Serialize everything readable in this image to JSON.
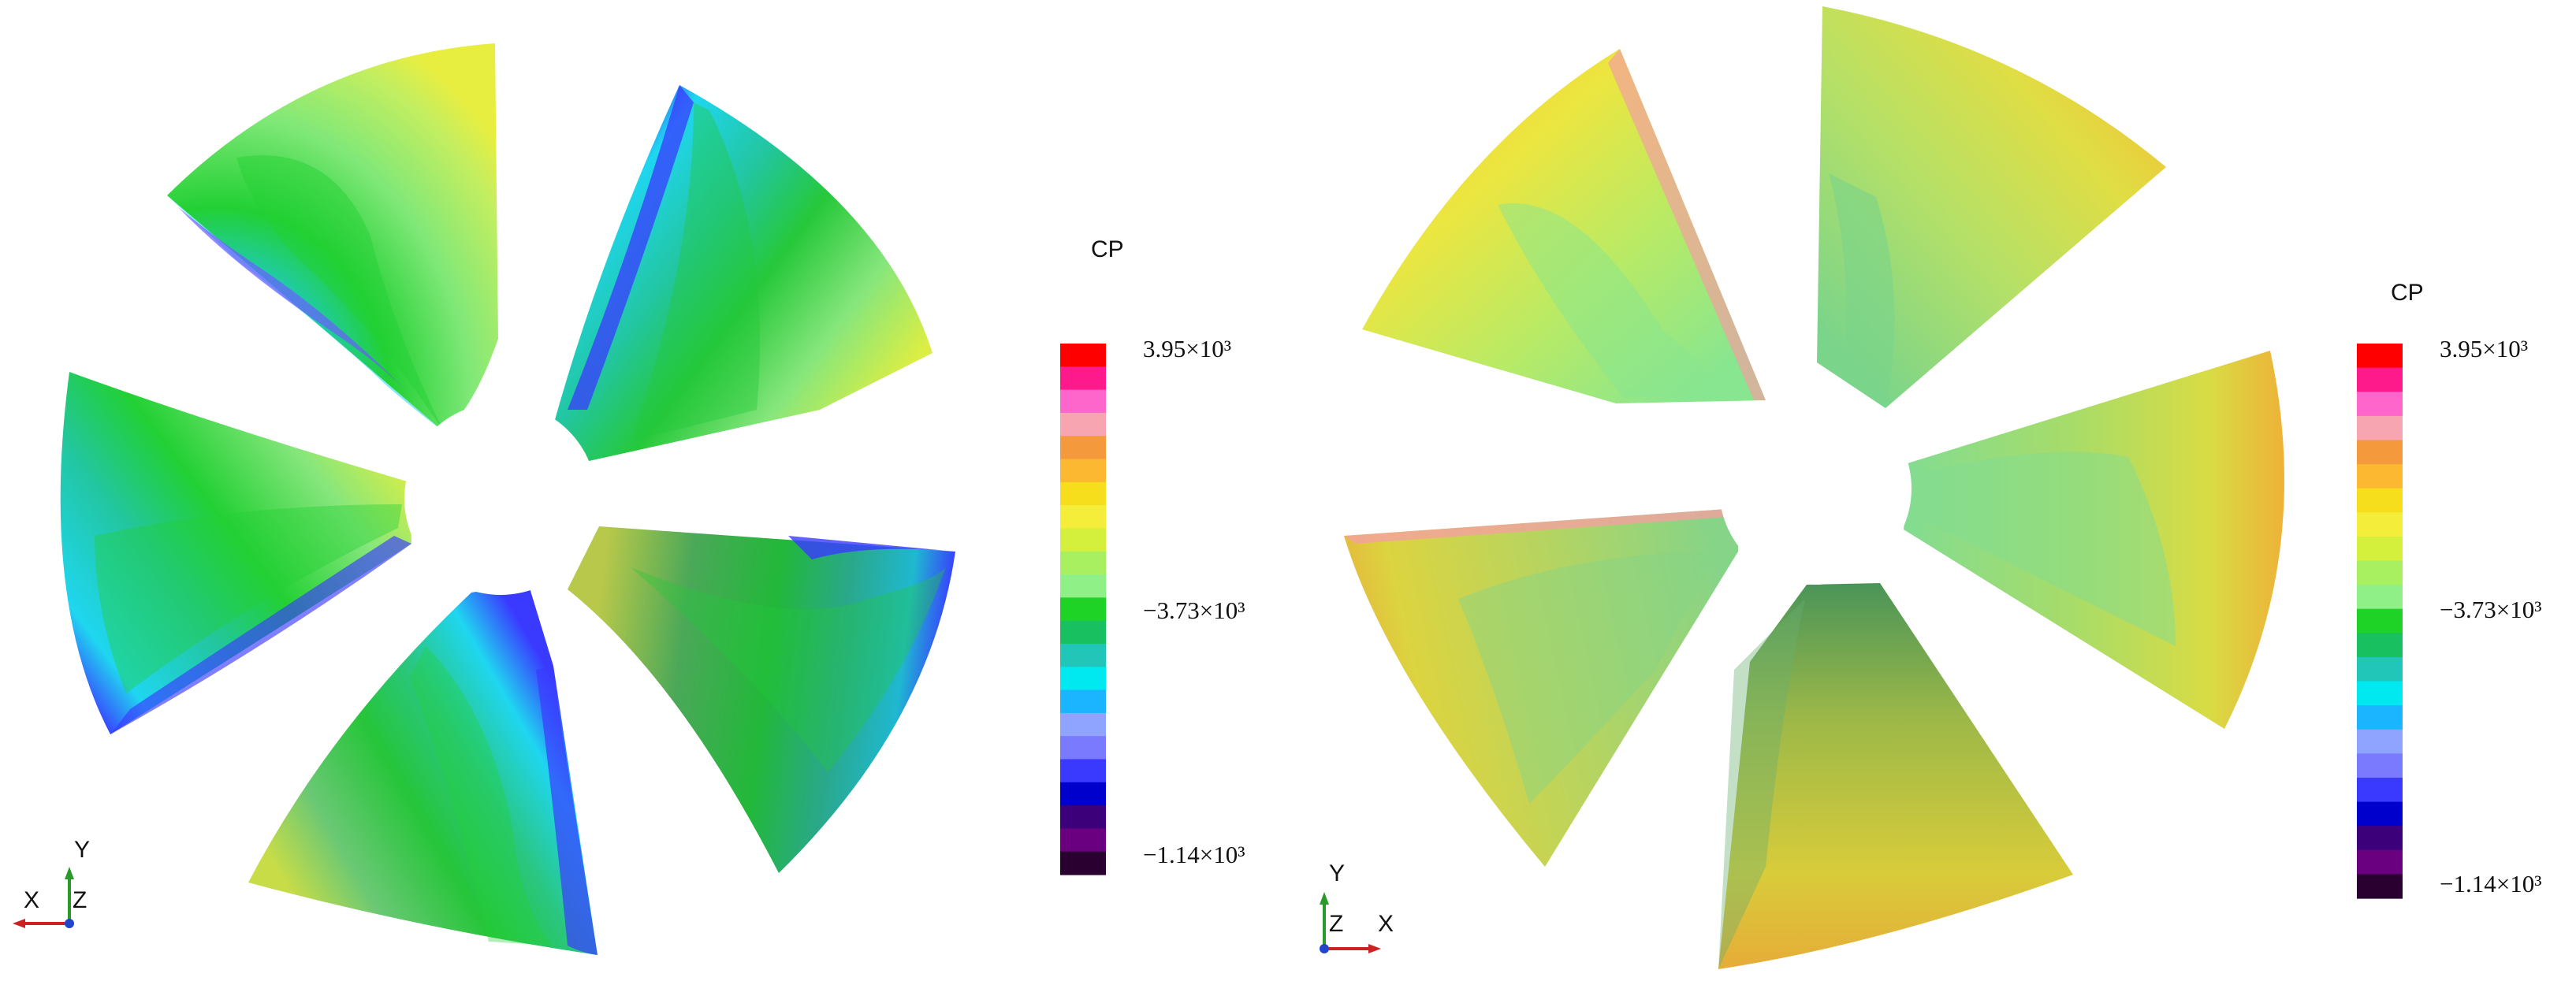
{
  "left_view": {
    "colorbar": {
      "title": "CP",
      "ticks": [
        "3.95×10³",
        "−3.73×10³",
        "−1.14×10³"
      ]
    },
    "triad": {
      "vertical": "Y",
      "horizontal": "X",
      "normal": "Z"
    }
  },
  "right_view": {
    "colorbar": {
      "title": "CP",
      "ticks": [
        "3.95×10³",
        "−3.73×10³",
        "−1.14×10³"
      ]
    },
    "triad": {
      "vertical": "Y",
      "horizontal": "X",
      "normal": "Z"
    }
  },
  "colormap": [
    "#ff0000",
    "#ff1a8c",
    "#ff66cc",
    "#f7a5b0",
    "#f59a3c",
    "#fbb830",
    "#f6de1c",
    "#f4ee3a",
    "#d4f03c",
    "#a8f060",
    "#8ff088",
    "#1fd326",
    "#18c060",
    "#22c6b8",
    "#00e8f0",
    "#1ab4ff",
    "#8fa4ff",
    "#7a7aff",
    "#3a3aff",
    "#0000cc",
    "#3c007a",
    "#6a0080",
    "#2a0030"
  ]
}
